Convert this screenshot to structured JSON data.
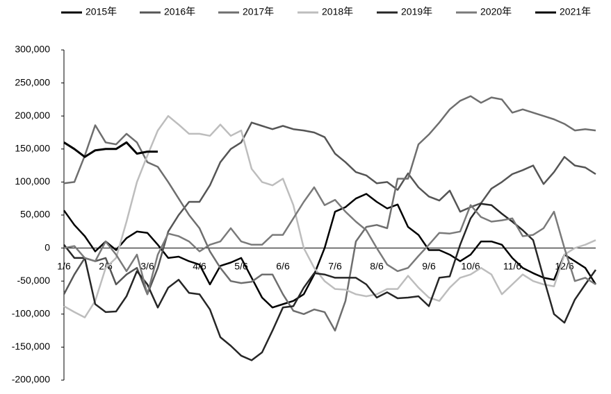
{
  "chart_data": {
    "type": "line",
    "legend": "top",
    "categories": [
      "1/6",
      null,
      null,
      null,
      "2/6",
      null,
      null,
      null,
      "3/6",
      null,
      null,
      null,
      null,
      "4/6",
      null,
      null,
      null,
      "5/6",
      null,
      null,
      null,
      "6/6",
      null,
      null,
      null,
      null,
      "7/6",
      null,
      null,
      null,
      "8/6",
      null,
      null,
      null,
      null,
      "9/6",
      null,
      null,
      null,
      "10/6",
      null,
      null,
      null,
      "11/6",
      null,
      null,
      null,
      null,
      "12/6",
      null,
      null,
      null
    ],
    "ylim": [
      -200000,
      300000
    ],
    "yticks": [
      {
        "value": -200000,
        "label": "-200,000"
      },
      {
        "value": -150000,
        "label": "-150,000"
      },
      {
        "value": -100000,
        "label": "-100,000"
      },
      {
        "value": -50000,
        "label": "-50,000"
      },
      0,
      {
        "value": 50000,
        "label": "50,000"
      },
      {
        "value": 100000,
        "label": "100,000"
      },
      {
        "value": 150000,
        "label": "150,000"
      },
      {
        "value": 200000,
        "label": "200,000"
      },
      {
        "value": 250000,
        "label": "250,000"
      },
      {
        "value": 300000,
        "label": "300,000"
      }
    ],
    "series": [
      {
        "name": "2015年",
        "color": "#000000",
        "values": [
          57000,
          35000,
          18000,
          -5000,
          10000,
          -3000,
          15000,
          25000,
          23000,
          5000,
          -15000,
          -13000,
          -20000,
          -25000,
          -55000,
          -27000,
          -22000,
          -15000,
          -45000,
          -75000,
          -90000,
          -85000,
          -80000,
          -70000,
          -40000,
          0,
          55000,
          62000,
          75000,
          82000,
          70000,
          60000,
          66000,
          32000,
          20000,
          -3000,
          -3000,
          -10000,
          -20000,
          -10000,
          10000,
          10000,
          5000,
          -15000,
          -30000,
          -38000,
          -45000,
          -48000,
          -10000,
          -20000,
          -30000,
          -55000
        ]
      },
      {
        "name": "2016年",
        "color": "#555555",
        "values": [
          -70000,
          -40000,
          -15000,
          -20000,
          -15000,
          -55000,
          -40000,
          -30000,
          -70000,
          -30000,
          25000,
          50000,
          70000,
          70000,
          95000,
          130000,
          150000,
          160000,
          190000,
          185000,
          180000,
          185000,
          180000,
          178000,
          175000,
          168000,
          143000,
          130000,
          115000,
          110000,
          98000,
          100000,
          88000,
          113000,
          92000,
          78000,
          72000,
          87000,
          55000,
          62000,
          68000,
          90000,
          100000,
          112000,
          118000,
          125000,
          97000,
          115000,
          138000,
          125000,
          122000,
          112000
        ]
      },
      {
        "name": "2017年",
        "color": "#6e6e6e",
        "values": [
          98000,
          100000,
          140000,
          186000,
          160000,
          157000,
          173000,
          160000,
          130000,
          123000,
          100000,
          75000,
          50000,
          30000,
          -5000,
          -30000,
          -50000,
          -53000,
          -51000,
          -40000,
          -40000,
          -70000,
          -95000,
          -100000,
          -93000,
          -97000,
          -125000,
          -80000,
          10000,
          32000,
          35000,
          30000,
          105000,
          105000,
          157000,
          172000,
          190000,
          210000,
          223000,
          230000,
          220000,
          228000,
          225000,
          205000,
          210000,
          205000,
          200000,
          195000,
          188000,
          178000,
          180000,
          178000
        ]
      },
      {
        "name": "2018年",
        "color": "#bdbdbd",
        "values": [
          -88000,
          -97000,
          -105000,
          -80000,
          -30000,
          -15000,
          40000,
          100000,
          140000,
          178000,
          200000,
          187000,
          173000,
          173000,
          170000,
          187000,
          170000,
          178000,
          120000,
          100000,
          95000,
          105000,
          65000,
          0,
          -30000,
          -50000,
          -62000,
          -63000,
          -70000,
          -73000,
          -70000,
          -62000,
          -62000,
          -42000,
          -60000,
          -75000,
          -80000,
          -60000,
          -45000,
          -40000,
          -30000,
          -40000,
          -70000,
          -55000,
          -40000,
          -50000,
          -55000,
          -58000,
          -10000,
          0,
          5000,
          12000
        ]
      },
      {
        "name": "2019年",
        "color": "#262626",
        "values": [
          5000,
          -15000,
          -15000,
          -85000,
          -97000,
          -96000,
          -73000,
          -35000,
          -55000,
          -90000,
          -60000,
          -48000,
          -68000,
          -70000,
          -93000,
          -135000,
          -148000,
          -163000,
          -170000,
          -158000,
          -125000,
          -90000,
          -88000,
          -60000,
          -38000,
          -40000,
          -45000,
          -45000,
          -45000,
          -55000,
          -75000,
          -67000,
          -76000,
          -75000,
          -73000,
          -88000,
          -45000,
          -43000,
          5000,
          45000,
          67000,
          65000,
          52000,
          40000,
          27000,
          12000,
          -45000,
          -100000,
          -113000,
          -78000,
          -55000,
          -33000
        ]
      },
      {
        "name": "2020年",
        "color": "#7a7a7a",
        "values": [
          0,
          3000,
          -15000,
          -20000,
          10000,
          -10000,
          -35000,
          -10000,
          -70000,
          -10000,
          22000,
          18000,
          10000,
          -5000,
          5000,
          10000,
          30000,
          10000,
          5000,
          5000,
          20000,
          20000,
          45000,
          70000,
          92000,
          65000,
          73000,
          55000,
          40000,
          27000,
          0,
          -25000,
          -35000,
          -30000,
          -12000,
          5000,
          23000,
          22000,
          25000,
          65000,
          47000,
          40000,
          42000,
          45000,
          18000,
          20000,
          30000,
          55000,
          0,
          -50000,
          -45000,
          -55000
        ]
      },
      {
        "name": "2021年",
        "color": "#000000",
        "values": [
          160000,
          150000,
          138000,
          148000,
          150000,
          150000,
          160000,
          143000,
          146000,
          146000,
          null,
          null,
          null,
          null,
          null,
          null,
          null,
          null,
          null,
          null,
          null,
          null,
          null,
          null,
          null,
          null,
          null,
          null,
          null,
          null,
          null,
          null,
          null,
          null,
          null,
          null,
          null,
          null,
          null,
          null,
          null,
          null,
          null,
          null,
          null,
          null,
          null,
          null,
          null,
          null,
          null,
          null
        ]
      }
    ]
  }
}
